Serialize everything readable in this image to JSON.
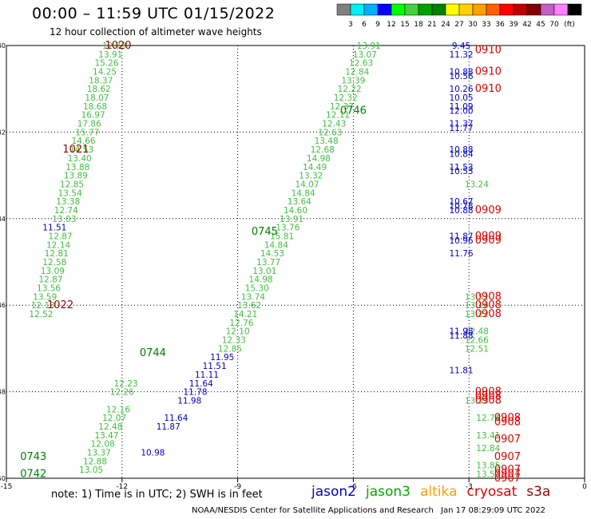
{
  "header": {
    "title": "00:00 – 11:59 UTC 01/15/2022",
    "subtitle": "12 hour collection of altimeter wave heights"
  },
  "legend_scale": {
    "unit_label": "(ft)",
    "colors": [
      "#808080",
      "#00f0f0",
      "#00b0ff",
      "#0000ff",
      "#00ff00",
      "#40d040",
      "#00a000",
      "#008000",
      "#ffff00",
      "#ffd000",
      "#ffa000",
      "#ff6000",
      "#ff0000",
      "#c00000",
      "#800000",
      "#c060c0",
      "#ff80ff",
      "#000000"
    ],
    "tick_labels": [
      "3",
      "6",
      "9",
      "12",
      "15",
      "18",
      "21",
      "24",
      "27",
      "30",
      "33",
      "36",
      "39",
      "42",
      "45",
      "70"
    ]
  },
  "footer": {
    "note": "note: 1) Time is in UTC; 2) SWH is in feet",
    "satellites": [
      {
        "name": "jason2",
        "color": "#0000cc"
      },
      {
        "name": "jason3",
        "color": "#00aa00"
      },
      {
        "name": "altika",
        "color": "#ffa000"
      },
      {
        "name": "cryosat",
        "color": "#dd0000"
      },
      {
        "name": "s3a",
        "color": "#990000"
      }
    ],
    "credit": "NOAA/NESDIS Center for Satellite Applications and Research",
    "timestamp": "Jan 17 08:29:09 UTC 2022"
  },
  "chart_data": {
    "type": "scatter",
    "xlabel": "",
    "ylabel": "",
    "xlim": [
      -15,
      0
    ],
    "ylim": [
      -50,
      -40
    ],
    "x_ticks": [
      "-15",
      "-12",
      "-9",
      "-6",
      "-3",
      "0"
    ],
    "y_ticks": [
      "-40",
      "-42",
      "-44",
      "-46",
      "-48",
      "-50"
    ],
    "series": [
      {
        "name": "jason3",
        "color": "#40c040",
        "points": [
          {
            "x": -12.2,
            "y": -40.0,
            "label": "12.73"
          },
          {
            "x": -12.3,
            "y": -40.2,
            "label": "13.91"
          },
          {
            "x": -12.4,
            "y": -40.4,
            "label": "15.26"
          },
          {
            "x": -12.45,
            "y": -40.6,
            "label": "14.25"
          },
          {
            "x": -12.55,
            "y": -40.8,
            "label": "18.37"
          },
          {
            "x": -12.6,
            "y": -41.0,
            "label": "18.62"
          },
          {
            "x": -12.65,
            "y": -41.2,
            "label": "18.07"
          },
          {
            "x": -12.7,
            "y": -41.4,
            "label": "18.68"
          },
          {
            "x": -12.75,
            "y": -41.6,
            "label": "16.97"
          },
          {
            "x": -12.85,
            "y": -41.8,
            "label": "17.86"
          },
          {
            "x": -12.9,
            "y": -42.0,
            "label": "15.77"
          },
          {
            "x": -13.0,
            "y": -42.2,
            "label": "14.66"
          },
          {
            "x": -13.05,
            "y": -42.4,
            "label": "14.53"
          },
          {
            "x": -13.1,
            "y": -42.6,
            "label": "13.40"
          },
          {
            "x": -13.15,
            "y": -42.8,
            "label": "13.88"
          },
          {
            "x": -13.2,
            "y": -43.0,
            "label": "13.89"
          },
          {
            "x": -13.3,
            "y": -43.2,
            "label": "12.85"
          },
          {
            "x": -13.35,
            "y": -43.4,
            "label": "13.54"
          },
          {
            "x": -13.4,
            "y": -43.6,
            "label": "13.38"
          },
          {
            "x": -13.45,
            "y": -43.8,
            "label": "12.74"
          },
          {
            "x": -13.5,
            "y": -44.0,
            "label": "13.03"
          },
          {
            "x": -13.6,
            "y": -44.4,
            "label": "12.87"
          },
          {
            "x": -13.65,
            "y": -44.6,
            "label": "12.14"
          },
          {
            "x": -13.7,
            "y": -44.8,
            "label": "12.81"
          },
          {
            "x": -13.75,
            "y": -45.0,
            "label": "12.58"
          },
          {
            "x": -13.8,
            "y": -45.2,
            "label": "13.09"
          },
          {
            "x": -13.85,
            "y": -45.4,
            "label": "12.87"
          },
          {
            "x": -13.9,
            "y": -45.6,
            "label": "13.56"
          },
          {
            "x": -14.0,
            "y": -45.8,
            "label": "13.59"
          },
          {
            "x": -14.05,
            "y": -46.0,
            "label": "12.13"
          },
          {
            "x": -14.1,
            "y": -46.2,
            "label": "12.52"
          },
          {
            "x": -5.6,
            "y": -40.0,
            "label": "13.91"
          },
          {
            "x": -5.7,
            "y": -40.2,
            "label": "13.07"
          },
          {
            "x": -5.8,
            "y": -40.4,
            "label": "12.63"
          },
          {
            "x": -5.9,
            "y": -40.6,
            "label": "12.84"
          },
          {
            "x": -6.0,
            "y": -40.8,
            "label": "13.39"
          },
          {
            "x": -6.1,
            "y": -41.0,
            "label": "12.22"
          },
          {
            "x": -6.2,
            "y": -41.2,
            "label": "12.32"
          },
          {
            "x": -6.3,
            "y": -41.4,
            "label": "12.37"
          },
          {
            "x": -6.4,
            "y": -41.6,
            "label": "12.11"
          },
          {
            "x": -6.5,
            "y": -41.8,
            "label": "12.43"
          },
          {
            "x": -6.6,
            "y": -42.0,
            "label": "12.63"
          },
          {
            "x": -6.7,
            "y": -42.2,
            "label": "13.48"
          },
          {
            "x": -6.8,
            "y": -42.4,
            "label": "12.68"
          },
          {
            "x": -6.9,
            "y": -42.6,
            "label": "14.98"
          },
          {
            "x": -7.0,
            "y": -42.8,
            "label": "14.49"
          },
          {
            "x": -7.1,
            "y": -43.0,
            "label": "13.32"
          },
          {
            "x": -7.2,
            "y": -43.2,
            "label": "14.07"
          },
          {
            "x": -7.3,
            "y": -43.4,
            "label": "14.84"
          },
          {
            "x": -7.4,
            "y": -43.6,
            "label": "13.64"
          },
          {
            "x": -7.5,
            "y": -43.8,
            "label": "14.60"
          },
          {
            "x": -7.6,
            "y": -44.0,
            "label": "13.91"
          },
          {
            "x": -7.7,
            "y": -44.2,
            "label": "13.76"
          },
          {
            "x": -7.85,
            "y": -44.4,
            "label": "15.81"
          },
          {
            "x": -8.0,
            "y": -44.6,
            "label": "14.84"
          },
          {
            "x": -8.1,
            "y": -44.8,
            "label": "14.53"
          },
          {
            "x": -8.2,
            "y": -45.0,
            "label": "13.77"
          },
          {
            "x": -8.3,
            "y": -45.2,
            "label": "13.01"
          },
          {
            "x": -8.4,
            "y": -45.4,
            "label": "14.98"
          },
          {
            "x": -8.5,
            "y": -45.6,
            "label": "15.30"
          },
          {
            "x": -8.6,
            "y": -45.8,
            "label": "13.74"
          },
          {
            "x": -8.7,
            "y": -46.0,
            "label": "13.62"
          },
          {
            "x": -8.8,
            "y": -46.2,
            "label": "14.21"
          },
          {
            "x": -8.9,
            "y": -46.4,
            "label": "12.76"
          },
          {
            "x": -9.0,
            "y": -46.6,
            "label": "12.10"
          },
          {
            "x": -9.1,
            "y": -46.8,
            "label": "12.33"
          },
          {
            "x": -9.2,
            "y": -47.0,
            "label": "12.85"
          },
          {
            "x": -11.9,
            "y": -47.8,
            "label": "12.23"
          },
          {
            "x": -12.0,
            "y": -48.0,
            "label": "12.26"
          },
          {
            "x": -12.1,
            "y": -48.4,
            "label": "12.16"
          },
          {
            "x": -12.2,
            "y": -48.6,
            "label": "12.07"
          },
          {
            "x": -12.3,
            "y": -48.8,
            "label": "12.48"
          },
          {
            "x": -12.4,
            "y": -49.0,
            "label": "13.47"
          },
          {
            "x": -12.5,
            "y": -49.2,
            "label": "12.08"
          },
          {
            "x": -12.6,
            "y": -49.4,
            "label": "13.37"
          },
          {
            "x": -12.7,
            "y": -49.6,
            "label": "12.88"
          },
          {
            "x": -12.8,
            "y": -49.8,
            "label": "13.05"
          },
          {
            "x": -2.8,
            "y": -43.2,
            "label": "13.24"
          },
          {
            "x": -2.8,
            "y": -45.8,
            "label": "13.51"
          },
          {
            "x": -2.8,
            "y": -46.0,
            "label": "13.16"
          },
          {
            "x": -2.8,
            "y": -46.2,
            "label": "13.22"
          },
          {
            "x": -2.8,
            "y": -46.6,
            "label": "12.48"
          },
          {
            "x": -2.8,
            "y": -46.8,
            "label": "12.66"
          },
          {
            "x": -2.8,
            "y": -47.0,
            "label": "12.51"
          },
          {
            "x": -2.8,
            "y": -48.2,
            "label": "13.33"
          },
          {
            "x": -2.5,
            "y": -48.6,
            "label": "12.74"
          },
          {
            "x": -2.5,
            "y": -49.0,
            "label": "13.41"
          },
          {
            "x": -2.5,
            "y": -49.3,
            "label": "12.84"
          },
          {
            "x": -2.5,
            "y": -49.7,
            "label": "13.85"
          },
          {
            "x": -2.5,
            "y": -49.9,
            "label": "13.57"
          }
        ]
      },
      {
        "name": "jason2",
        "color": "#0000cc",
        "points": [
          {
            "x": -13.75,
            "y": -44.2,
            "label": "11.51"
          },
          {
            "x": -9.4,
            "y": -47.2,
            "label": "11.95"
          },
          {
            "x": -9.6,
            "y": -47.4,
            "label": "11.51"
          },
          {
            "x": -9.8,
            "y": -47.6,
            "label": "11.11"
          },
          {
            "x": -9.95,
            "y": -47.8,
            "label": "11.64"
          },
          {
            "x": -10.1,
            "y": -48.0,
            "label": "11.78"
          },
          {
            "x": -10.25,
            "y": -48.2,
            "label": "11.98"
          },
          {
            "x": -10.6,
            "y": -48.6,
            "label": "11.64"
          },
          {
            "x": -10.8,
            "y": -48.8,
            "label": "11.87"
          },
          {
            "x": -11.2,
            "y": -49.4,
            "label": "10.98"
          },
          {
            "x": -3.2,
            "y": -40.0,
            "label": "9.45"
          },
          {
            "x": -3.2,
            "y": -40.2,
            "label": "11.32"
          },
          {
            "x": -3.2,
            "y": -40.6,
            "label": "10.88"
          },
          {
            "x": -3.2,
            "y": -40.7,
            "label": "10.56"
          },
          {
            "x": -3.2,
            "y": -41.0,
            "label": "10.26"
          },
          {
            "x": -3.2,
            "y": -41.2,
            "label": "10.05"
          },
          {
            "x": -3.2,
            "y": -41.4,
            "label": "11.09"
          },
          {
            "x": -3.2,
            "y": -41.5,
            "label": "12.00"
          },
          {
            "x": -3.2,
            "y": -41.8,
            "label": "11.37"
          },
          {
            "x": -3.2,
            "y": -41.9,
            "label": "11.77"
          },
          {
            "x": -3.2,
            "y": -42.4,
            "label": "10.88"
          },
          {
            "x": -3.2,
            "y": -42.5,
            "label": "10.84"
          },
          {
            "x": -3.2,
            "y": -42.8,
            "label": "11.53"
          },
          {
            "x": -3.2,
            "y": -42.9,
            "label": "10.53"
          },
          {
            "x": -3.2,
            "y": -43.6,
            "label": "10.67"
          },
          {
            "x": -3.2,
            "y": -43.7,
            "label": "10.78"
          },
          {
            "x": -3.2,
            "y": -43.8,
            "label": "10.88"
          },
          {
            "x": -3.2,
            "y": -44.4,
            "label": "11.87"
          },
          {
            "x": -3.2,
            "y": -44.5,
            "label": "10.96"
          },
          {
            "x": -3.2,
            "y": -44.8,
            "label": "11.76"
          },
          {
            "x": -3.2,
            "y": -46.6,
            "label": "11.98"
          },
          {
            "x": -3.2,
            "y": -46.7,
            "label": "11.88"
          },
          {
            "x": -3.2,
            "y": -47.5,
            "label": "11.81"
          }
        ]
      },
      {
        "name": "s3a",
        "color": "#990000",
        "points": [
          {
            "x": -12.1,
            "y": -40.0,
            "label": "1020"
          },
          {
            "x": -13.2,
            "y": -42.4,
            "label": "1021"
          },
          {
            "x": -13.6,
            "y": -46.0,
            "label": "1022"
          }
        ]
      },
      {
        "name": "cryosat",
        "color": "#dd0000",
        "points": [
          {
            "x": -2.5,
            "y": -40.1,
            "label": "0910"
          },
          {
            "x": -2.5,
            "y": -40.6,
            "label": "0910"
          },
          {
            "x": -2.5,
            "y": -41.0,
            "label": "0910"
          },
          {
            "x": -2.5,
            "y": -43.8,
            "label": "0909"
          },
          {
            "x": -2.5,
            "y": -44.4,
            "label": "0909"
          },
          {
            "x": -2.5,
            "y": -44.5,
            "label": "0909"
          },
          {
            "x": -2.5,
            "y": -45.8,
            "label": "0908"
          },
          {
            "x": -2.5,
            "y": -46.0,
            "label": "0908"
          },
          {
            "x": -2.5,
            "y": -46.2,
            "label": "0908"
          },
          {
            "x": -2.5,
            "y": -48.0,
            "label": "0908"
          },
          {
            "x": -2.5,
            "y": -48.1,
            "label": "0908"
          },
          {
            "x": -2.5,
            "y": -48.2,
            "label": "0908"
          },
          {
            "x": -2.0,
            "y": -48.6,
            "label": "0908"
          },
          {
            "x": -2.0,
            "y": -48.7,
            "label": "0908"
          },
          {
            "x": -2.0,
            "y": -49.1,
            "label": "0907"
          },
          {
            "x": -2.0,
            "y": -49.5,
            "label": "0907"
          },
          {
            "x": -2.0,
            "y": -49.8,
            "label": "0907"
          },
          {
            "x": -2.0,
            "y": -49.9,
            "label": "0907"
          },
          {
            "x": -2.0,
            "y": -50.0,
            "label": "0907"
          }
        ]
      },
      {
        "name": "jason3",
        "color": "#008000",
        "points": [
          {
            "x": -6.0,
            "y": -41.5,
            "label": "0746"
          },
          {
            "x": -8.3,
            "y": -44.3,
            "label": "0745"
          },
          {
            "x": -11.2,
            "y": -47.1,
            "label": "0744"
          },
          {
            "x": -14.3,
            "y": -49.5,
            "label": "0743"
          },
          {
            "x": -14.3,
            "y": -49.9,
            "label": "0742"
          }
        ]
      }
    ]
  }
}
